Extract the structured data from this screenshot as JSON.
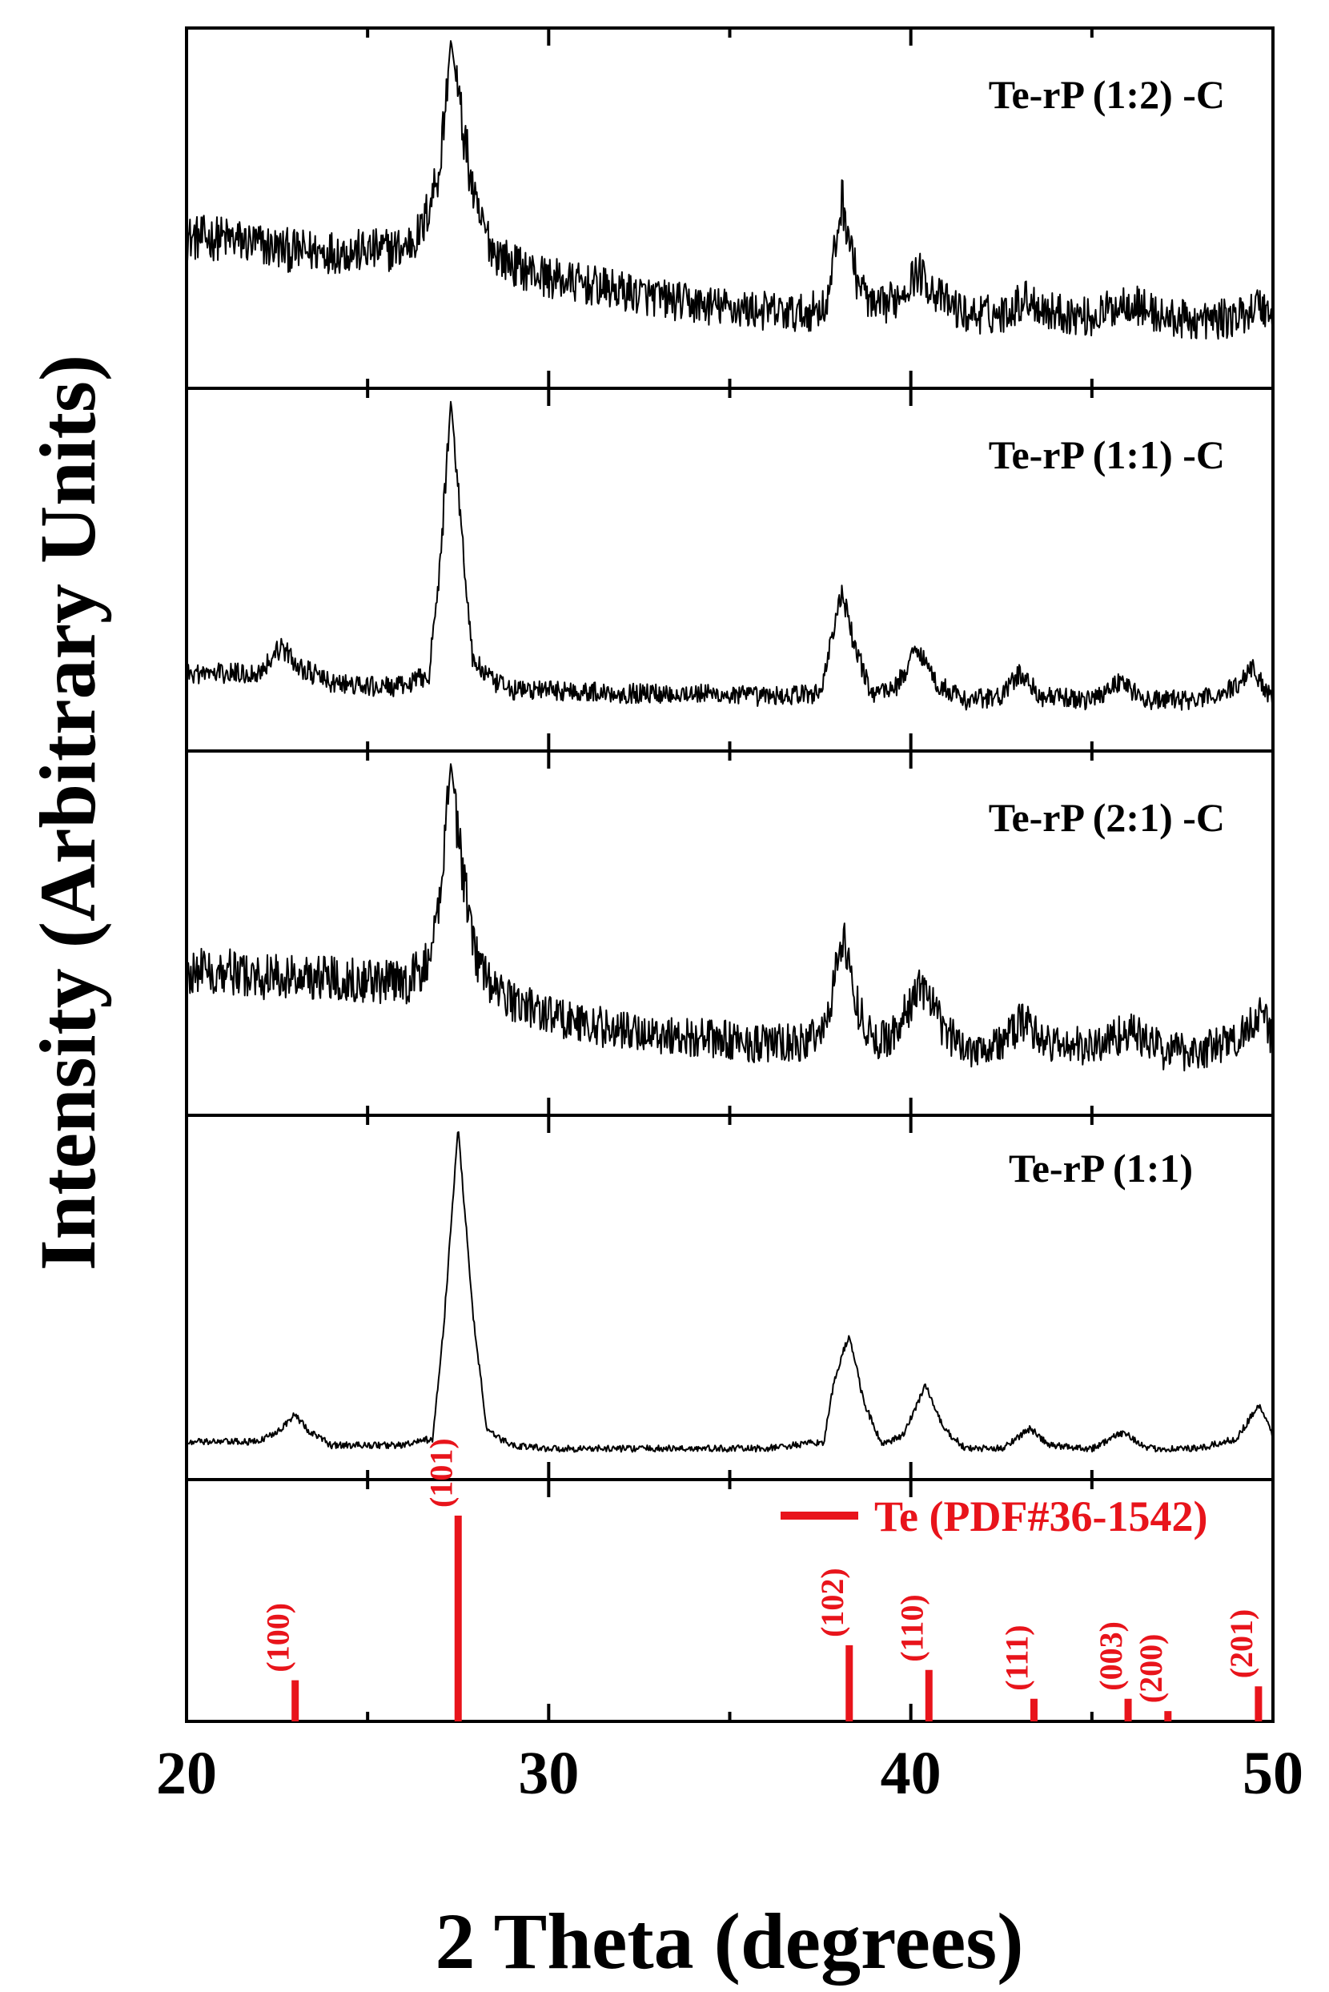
{
  "chart_data": {
    "type": "line",
    "xlabel": "2 Theta (degrees)",
    "ylabel": "Intensity (Arbitrary Units)",
    "xlim": [
      20,
      50
    ],
    "x_ticks": [
      20,
      30,
      40,
      50
    ],
    "series": [
      {
        "name": "Te-rP (1:2) -C",
        "baseline": 0.22,
        "noise": 0.12,
        "points": [
          [
            20,
            0.4
          ],
          [
            21,
            0.4
          ],
          [
            22,
            0.38
          ],
          [
            23,
            0.36
          ],
          [
            24,
            0.36
          ],
          [
            25,
            0.36
          ],
          [
            26,
            0.37
          ],
          [
            26.5,
            0.42
          ],
          [
            27,
            0.62
          ],
          [
            27.3,
            1.0
          ],
          [
            27.6,
            0.75
          ],
          [
            28,
            0.48
          ],
          [
            28.5,
            0.36
          ],
          [
            29,
            0.32
          ],
          [
            30,
            0.28
          ],
          [
            31,
            0.26
          ],
          [
            32,
            0.24
          ],
          [
            33,
            0.22
          ],
          [
            34,
            0.2
          ],
          [
            35,
            0.19
          ],
          [
            36,
            0.18
          ],
          [
            37,
            0.17
          ],
          [
            37.7,
            0.2
          ],
          [
            38.1,
            0.52
          ],
          [
            38.5,
            0.28
          ],
          [
            39,
            0.18
          ],
          [
            39.6,
            0.22
          ],
          [
            40.2,
            0.3
          ],
          [
            40.8,
            0.22
          ],
          [
            41.5,
            0.17
          ],
          [
            42.5,
            0.17
          ],
          [
            43.2,
            0.22
          ],
          [
            43.8,
            0.18
          ],
          [
            45,
            0.16
          ],
          [
            46,
            0.21
          ],
          [
            47,
            0.16
          ],
          [
            48,
            0.15
          ],
          [
            49,
            0.16
          ],
          [
            49.6,
            0.2
          ],
          [
            50,
            0.17
          ]
        ]
      },
      {
        "name": "Te-rP (1:1) -C",
        "baseline": 0.12,
        "noise": 0.06,
        "points": [
          [
            20,
            0.18
          ],
          [
            21,
            0.18
          ],
          [
            22,
            0.18
          ],
          [
            22.6,
            0.26
          ],
          [
            23.1,
            0.2
          ],
          [
            24,
            0.15
          ],
          [
            25,
            0.14
          ],
          [
            26,
            0.14
          ],
          [
            26.7,
            0.18
          ],
          [
            27,
            0.5
          ],
          [
            27.3,
            1.0
          ],
          [
            27.6,
            0.6
          ],
          [
            27.9,
            0.22
          ],
          [
            28.5,
            0.15
          ],
          [
            29,
            0.13
          ],
          [
            30,
            0.13
          ],
          [
            32,
            0.12
          ],
          [
            34,
            0.12
          ],
          [
            36,
            0.11
          ],
          [
            37.5,
            0.12
          ],
          [
            37.8,
            0.28
          ],
          [
            38.1,
            0.42
          ],
          [
            38.4,
            0.28
          ],
          [
            38.9,
            0.12
          ],
          [
            39.6,
            0.14
          ],
          [
            40.2,
            0.26
          ],
          [
            40.7,
            0.15
          ],
          [
            41.5,
            0.1
          ],
          [
            42.5,
            0.11
          ],
          [
            43,
            0.18
          ],
          [
            43.6,
            0.11
          ],
          [
            45,
            0.1
          ],
          [
            45.8,
            0.16
          ],
          [
            46.4,
            0.1
          ],
          [
            48,
            0.1
          ],
          [
            49,
            0.14
          ],
          [
            49.4,
            0.2
          ],
          [
            49.8,
            0.13
          ],
          [
            50,
            0.11
          ]
        ]
      },
      {
        "name": "Te-rP (2:1) -C",
        "baseline": 0.2,
        "noise": 0.12,
        "points": [
          [
            20,
            0.38
          ],
          [
            21,
            0.38
          ],
          [
            22,
            0.36
          ],
          [
            23,
            0.36
          ],
          [
            24,
            0.36
          ],
          [
            25,
            0.35
          ],
          [
            26,
            0.34
          ],
          [
            26.7,
            0.4
          ],
          [
            27,
            0.6
          ],
          [
            27.3,
            1.0
          ],
          [
            27.6,
            0.7
          ],
          [
            28,
            0.42
          ],
          [
            28.5,
            0.32
          ],
          [
            29,
            0.29
          ],
          [
            30,
            0.25
          ],
          [
            31,
            0.22
          ],
          [
            32,
            0.2
          ],
          [
            33,
            0.19
          ],
          [
            34,
            0.18
          ],
          [
            35,
            0.17
          ],
          [
            36,
            0.16
          ],
          [
            37,
            0.16
          ],
          [
            37.7,
            0.22
          ],
          [
            38.1,
            0.5
          ],
          [
            38.5,
            0.28
          ],
          [
            39,
            0.16
          ],
          [
            39.6,
            0.2
          ],
          [
            40.3,
            0.34
          ],
          [
            40.9,
            0.2
          ],
          [
            41.5,
            0.15
          ],
          [
            42.5,
            0.16
          ],
          [
            43.1,
            0.23
          ],
          [
            43.8,
            0.16
          ],
          [
            45,
            0.15
          ],
          [
            46,
            0.2
          ],
          [
            47,
            0.14
          ],
          [
            48,
            0.14
          ],
          [
            49,
            0.17
          ],
          [
            49.6,
            0.26
          ],
          [
            50,
            0.18
          ]
        ]
      },
      {
        "name": "Te-rP (1:1)",
        "baseline": 0.04,
        "noise": 0.02,
        "points": [
          [
            20,
            0.06
          ],
          [
            21,
            0.06
          ],
          [
            22,
            0.06
          ],
          [
            22.6,
            0.1
          ],
          [
            23,
            0.14
          ],
          [
            23.4,
            0.09
          ],
          [
            24,
            0.05
          ],
          [
            25,
            0.05
          ],
          [
            26,
            0.05
          ],
          [
            26.8,
            0.07
          ],
          [
            27.1,
            0.4
          ],
          [
            27.5,
            1.0
          ],
          [
            27.9,
            0.45
          ],
          [
            28.3,
            0.09
          ],
          [
            29,
            0.05
          ],
          [
            30,
            0.04
          ],
          [
            32,
            0.04
          ],
          [
            34,
            0.04
          ],
          [
            36,
            0.04
          ],
          [
            37.6,
            0.06
          ],
          [
            37.9,
            0.25
          ],
          [
            38.3,
            0.38
          ],
          [
            38.7,
            0.18
          ],
          [
            39.2,
            0.05
          ],
          [
            39.8,
            0.08
          ],
          [
            40.4,
            0.23
          ],
          [
            40.9,
            0.1
          ],
          [
            41.5,
            0.04
          ],
          [
            42.5,
            0.04
          ],
          [
            43.3,
            0.1
          ],
          [
            43.8,
            0.05
          ],
          [
            45,
            0.04
          ],
          [
            45.9,
            0.09
          ],
          [
            46.5,
            0.04
          ],
          [
            48,
            0.04
          ],
          [
            49,
            0.07
          ],
          [
            49.6,
            0.17
          ],
          [
            50,
            0.08
          ]
        ]
      }
    ],
    "reference": {
      "name": "Te (PDF#36-1542)",
      "color": "#e8141b",
      "peaks": [
        {
          "x": 23.0,
          "intensity": 0.2,
          "label": "(100)"
        },
        {
          "x": 27.5,
          "intensity": 1.0,
          "label": "(101)"
        },
        {
          "x": 38.3,
          "intensity": 0.37,
          "label": "(102)"
        },
        {
          "x": 40.5,
          "intensity": 0.25,
          "label": "(110)"
        },
        {
          "x": 43.4,
          "intensity": 0.11,
          "label": "(111)"
        },
        {
          "x": 46.0,
          "intensity": 0.11,
          "label": "(003)"
        },
        {
          "x": 47.1,
          "intensity": 0.05,
          "label": "(200)"
        },
        {
          "x": 49.6,
          "intensity": 0.17,
          "label": "(201)"
        }
      ]
    }
  }
}
